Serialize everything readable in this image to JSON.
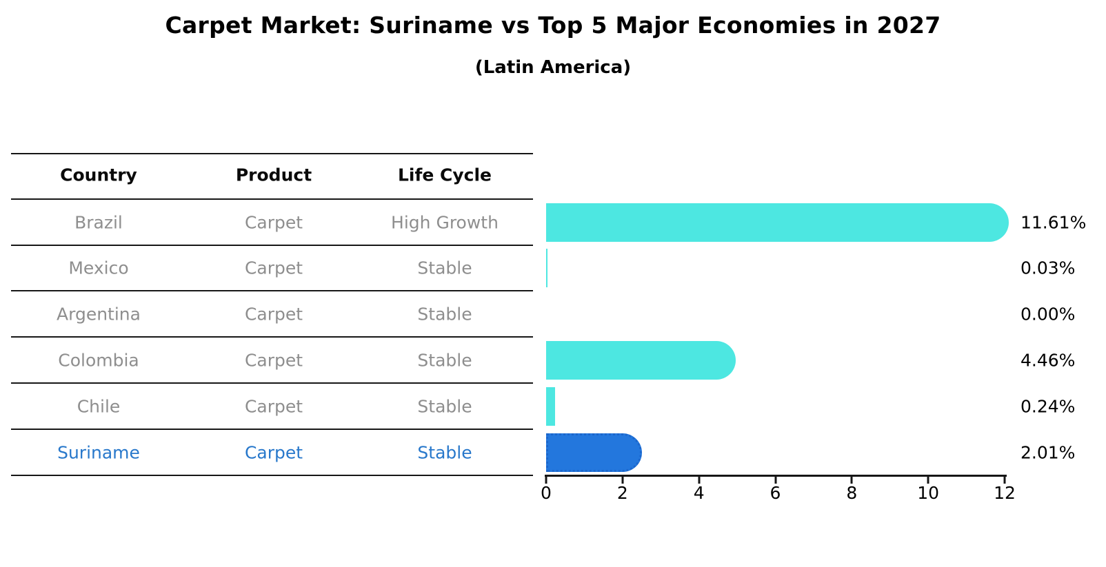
{
  "title": "Carpet Market: Suriname vs Top 5 Major Economies in 2027",
  "subtitle": "(Latin America)",
  "table": {
    "headers": [
      "Country",
      "Product",
      "Life Cycle"
    ],
    "rows": [
      {
        "country": "Brazil",
        "product": "Carpet",
        "life_cycle": "High Growth",
        "highlighted": false
      },
      {
        "country": "Mexico",
        "product": "Carpet",
        "life_cycle": "Stable",
        "highlighted": false
      },
      {
        "country": "Argentina",
        "product": "Carpet",
        "life_cycle": "Stable",
        "highlighted": false
      },
      {
        "country": "Colombia",
        "product": "Carpet",
        "life_cycle": "Stable",
        "highlighted": false
      },
      {
        "country": "Chile",
        "product": "Carpet",
        "life_cycle": "Stable",
        "highlighted": false
      },
      {
        "country": "Suriname",
        "product": "Carpet",
        "life_cycle": "Stable",
        "highlighted": true
      }
    ]
  },
  "chart_data": {
    "type": "bar",
    "orientation": "horizontal",
    "title": "Carpet Market: Suriname vs Top 5 Major Economies in 2027",
    "subtitle": "(Latin America)",
    "categories": [
      "Brazil",
      "Mexico",
      "Argentina",
      "Colombia",
      "Chile",
      "Suriname"
    ],
    "values": [
      11.61,
      0.03,
      0.0,
      4.46,
      0.24,
      2.01
    ],
    "value_labels": [
      "11.61%",
      "0.03%",
      "0.00%",
      "4.46%",
      "0.24%",
      "2.01%"
    ],
    "xlim": [
      0,
      12
    ],
    "xticks": [
      0,
      2,
      4,
      6,
      8,
      10,
      12
    ],
    "xlabel": "",
    "ylabel": "",
    "grid": false,
    "legend": false,
    "highlight_category": "Suriname",
    "colors": {
      "bar": "#4DE7E1",
      "highlight_bar": "#2377DD",
      "highlight_bar_border": "#1B66CC",
      "highlight_text": "#2878CB",
      "table_text": "#8e8e8e",
      "axis": "#161616"
    }
  }
}
